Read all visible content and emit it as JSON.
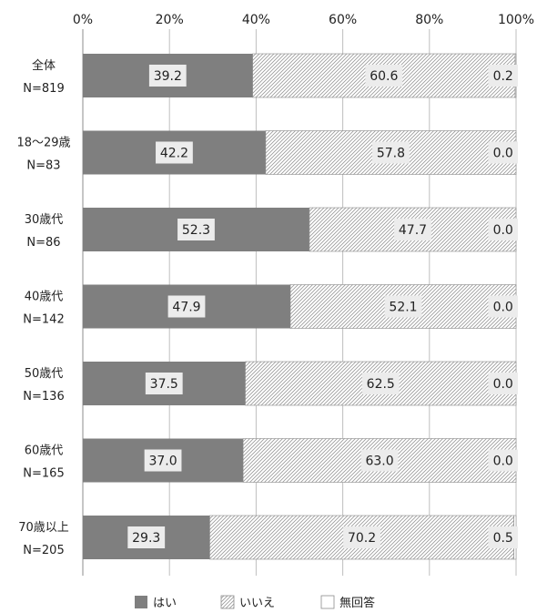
{
  "chart_data": {
    "type": "bar",
    "orientation": "horizontal",
    "stacked": true,
    "xlim": [
      0,
      100
    ],
    "x_ticks": [
      "0%",
      "20%",
      "40%",
      "60%",
      "80%",
      "100%"
    ],
    "categories": [
      {
        "name": "全体",
        "n": "N=819"
      },
      {
        "name": "18～29歳",
        "n": "N=83"
      },
      {
        "name": "30歳代",
        "n": "N=86"
      },
      {
        "name": "40歳代",
        "n": "N=142"
      },
      {
        "name": "50歳代",
        "n": "N=136"
      },
      {
        "name": "60歳代",
        "n": "N=165"
      },
      {
        "name": "70歳以上",
        "n": "N=205"
      }
    ],
    "series": [
      {
        "name": "はい",
        "color": "#7f7f7f",
        "labels": [
          "39.2",
          "42.2",
          "52.3",
          "47.9",
          "37.5",
          "37.0",
          "29.3"
        ],
        "values": [
          39.2,
          42.2,
          52.3,
          47.9,
          37.5,
          37.0,
          29.3
        ]
      },
      {
        "name": "いいえ",
        "color": "#ffffff",
        "pattern": "diagonal-hatch",
        "labels": [
          "60.6",
          "57.8",
          "47.7",
          "52.1",
          "62.5",
          "63.0",
          "70.2"
        ],
        "values": [
          60.6,
          57.8,
          47.7,
          52.1,
          62.5,
          63.0,
          70.2
        ]
      },
      {
        "name": "無回答",
        "color": "#ffffff",
        "labels": [
          "0.2",
          "0.0",
          "0.0",
          "0.0",
          "0.0",
          "0.0",
          "0.5"
        ],
        "values": [
          0.2,
          0.0,
          0.0,
          0.0,
          0.0,
          0.0,
          0.5
        ]
      }
    ],
    "grid": true,
    "legend": "bottom"
  }
}
